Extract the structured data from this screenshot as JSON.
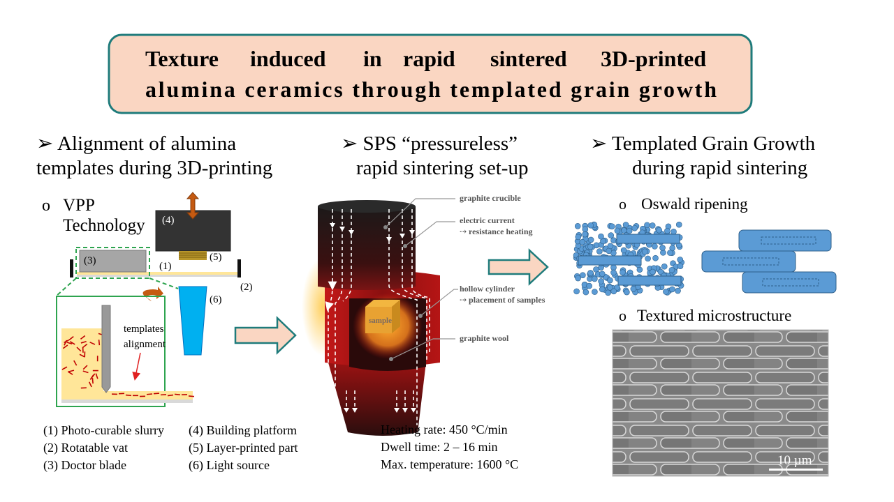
{
  "title": {
    "line1": [
      "Texture",
      "induced",
      "in",
      "rapid",
      "sintered",
      "3D-printed"
    ],
    "line2": "alumina ceramics through templated grain growth"
  },
  "colors": {
    "title_fill": "#fad6c2",
    "title_border": "#1e7b7b",
    "arrow_fill": "#fad6c2",
    "arrow_border": "#1e7b7b",
    "particle": "#5b9bd5",
    "slurry": "#ffe699",
    "template": "#c00000",
    "light": "#00b0f0",
    "green_box": "#2ea44f"
  },
  "left": {
    "heading1": "➢  Alignment of alumina",
    "heading2": "templates during 3D-printing",
    "bullet": "o",
    "sub1": "VPP",
    "sub2": "Technology",
    "labels": {
      "n1": "(1)",
      "n2": "(2)",
      "n3": "(3)",
      "n4": "(4)",
      "n5": "(5)",
      "n6": "(6)"
    },
    "annot1": "templates",
    "annot2": "alignment",
    "legend": [
      "(1)  Photo-curable slurry",
      "(2)  Rotatable vat",
      "(3)  Doctor blade",
      "(4)  Building platform",
      "(5)  Layer-printed part",
      "(6)  Light source"
    ]
  },
  "middle": {
    "heading1": "➢  SPS “pressureless”",
    "heading2": "rapid sintering set-up",
    "labels": {
      "crucible": "graphite crucible",
      "current1": "electric current",
      "current2": "⇢ resistance heating",
      "cyl1": "hollow cylinder",
      "cyl2": "⇢ placement of samples",
      "wool": "graphite wool",
      "sample": "sample"
    },
    "params": [
      "Heating rate: 450 °C/min",
      "Dwell time: 2 – 16 min",
      "Max. temperature: 1600 °C"
    ]
  },
  "right": {
    "heading1": "➢  Templated Grain Growth",
    "heading2": "during rapid sintering",
    "sub1": "Oswald ripening",
    "sub2": "Textured microstructure",
    "bullet": "o",
    "scale_bar": "10 µm"
  }
}
